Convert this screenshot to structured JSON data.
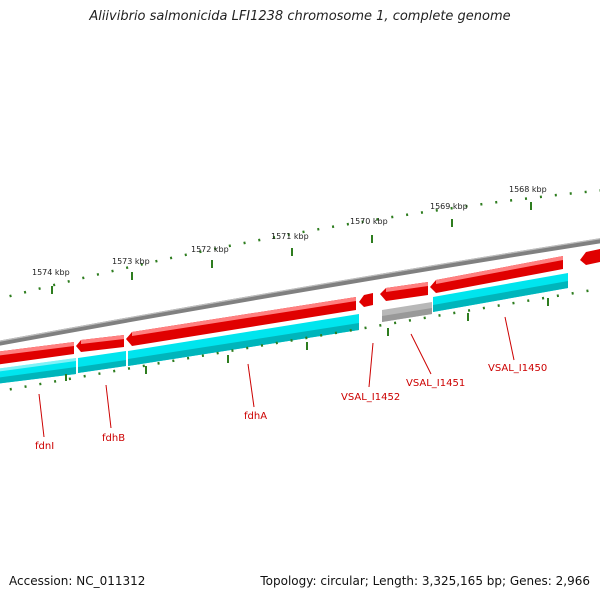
{
  "title": "Aliivibrio salmonicida LFI1238 chromosome 1, complete genome",
  "footer": {
    "accession": "Accession: NC_011312",
    "summary": "Topology: circular; Length: 3,325,165 bp; Genes: 2,966"
  },
  "ticks": [
    "1574 kbp",
    "1573 kbp",
    "1572 kbp",
    "1571 kbp",
    "1570 kbp",
    "1569 kbp",
    "1568 kbp"
  ],
  "genes": [
    "fdnI",
    "fdhB",
    "fdhA",
    "VSAL_I1452",
    "VSAL_I1451",
    "VSAL_I1450"
  ],
  "colors": {
    "backbone": "#808080",
    "gene_forward": "#e00000",
    "gene_highlight": "#ff8080",
    "cds": "#00e5ee",
    "cds_dark": "#00aaaa",
    "pseudo": "#b0b0b0",
    "tick": "#2e7d1f",
    "label": "#cc0000"
  }
}
